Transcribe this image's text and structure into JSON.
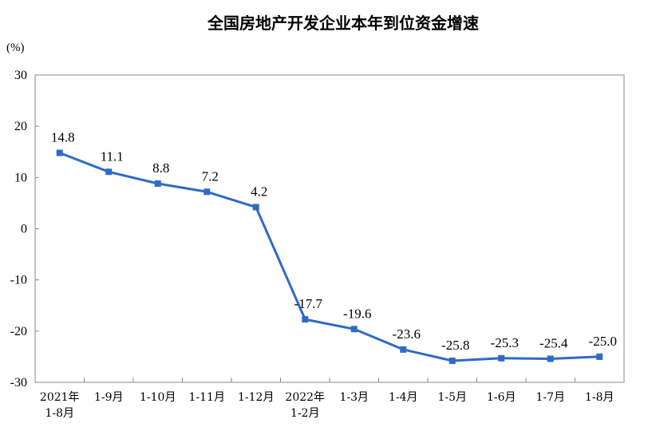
{
  "chart_data": {
    "type": "line",
    "title": "全国房地产开发企业本年到位资金增速",
    "ylabel": "(%)",
    "xlabel": "",
    "ylim": [
      -30,
      30
    ],
    "yticks": [
      30,
      20,
      10,
      0,
      -10,
      -20,
      -30
    ],
    "grid": false,
    "legend": "none",
    "categories": [
      [
        "2021年",
        "1-8月"
      ],
      [
        "1-9月"
      ],
      [
        "1-10月"
      ],
      [
        "1-11月"
      ],
      [
        "1-12月"
      ],
      [
        "2022年",
        "1-2月"
      ],
      [
        "1-3月"
      ],
      [
        "1-4月"
      ],
      [
        "1-5月"
      ],
      [
        "1-6月"
      ],
      [
        "1-7月"
      ],
      [
        "1-8月"
      ]
    ],
    "series": [
      {
        "color": "#2e6bc6",
        "values": [
          14.8,
          11.1,
          8.8,
          7.2,
          4.2,
          -17.7,
          -19.6,
          -23.6,
          -25.8,
          -25.3,
          -25.4,
          -25.0
        ]
      }
    ],
    "data_labels": [
      "14.8",
      "11.1",
      "8.8",
      "7.2",
      "4.2",
      "-17.7",
      "-19.6",
      "-23.6",
      "-25.8",
      "-25.3",
      "-25.4",
      "-25.0"
    ]
  }
}
